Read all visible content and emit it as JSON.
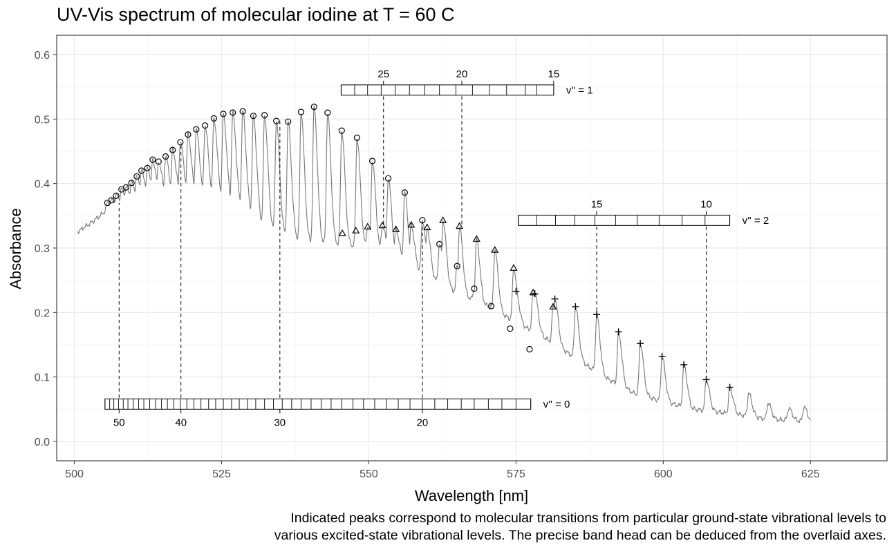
{
  "chart_data": {
    "type": "line",
    "title": "UV-Vis spectrum of molecular iodine at T = 60 C",
    "xlabel": "Wavelength [nm]",
    "ylabel": "Absorbance",
    "caption_lines": [
      "Indicated peaks correspond to molecular transitions from particular ground-state vibrational levels to",
      "various excited-state vibrational levels. The precise band head can be deduced from the overlaid axes."
    ],
    "xlim": [
      497,
      638
    ],
    "ylim": [
      -0.03,
      0.63
    ],
    "x_ticks": [
      500,
      525,
      550,
      575,
      600,
      625
    ],
    "y_ticks": [
      0.0,
      0.1,
      0.2,
      0.3,
      0.4,
      0.5,
      0.6
    ],
    "x_tick_labels": [
      "500",
      "525",
      "550",
      "575",
      "600",
      "625"
    ],
    "y_tick_labels": [
      "0.0",
      "0.1",
      "0.2",
      "0.3",
      "0.4",
      "0.5",
      "0.6"
    ],
    "grid": true,
    "series_color": "#777777",
    "series": [
      {
        "name": "",
        "type": "line",
        "baseline": [
          [
            500.5,
            0.325
          ],
          [
            503,
            0.34
          ],
          [
            505,
            0.355
          ],
          [
            508,
            0.37
          ],
          [
            511,
            0.378
          ],
          [
            515,
            0.38
          ],
          [
            520,
            0.381
          ],
          [
            525,
            0.375
          ],
          [
            529,
            0.36
          ],
          [
            532,
            0.335
          ],
          [
            536,
            0.318
          ],
          [
            540,
            0.308
          ],
          [
            545,
            0.305
          ],
          [
            550,
            0.3
          ],
          [
            555,
            0.285
          ],
          [
            560,
            0.255
          ],
          [
            565,
            0.23
          ],
          [
            570,
            0.21
          ],
          [
            575,
            0.185
          ],
          [
            580,
            0.16
          ],
          [
            585,
            0.13
          ],
          [
            590,
            0.1
          ],
          [
            595,
            0.075
          ],
          [
            600,
            0.062
          ],
          [
            605,
            0.05
          ],
          [
            610,
            0.045
          ],
          [
            614,
            0.04
          ],
          [
            618,
            0.034
          ],
          [
            622,
            0.033
          ],
          [
            625,
            0.03
          ]
        ],
        "tail_peaks": [
          [
            614.5,
            0.075
          ],
          [
            617.8,
            0.06
          ],
          [
            621.3,
            0.052
          ],
          [
            623.9,
            0.054
          ]
        ],
        "start_x": 500.5,
        "end_x": 625
      },
      {
        "name": "",
        "marker": "circle",
        "points": [
          [
            505.6,
            0.37
          ],
          [
            506.3,
            0.374
          ],
          [
            507.1,
            0.381
          ],
          [
            508,
            0.391
          ],
          [
            508.8,
            0.394
          ],
          [
            509.7,
            0.401
          ],
          [
            510.6,
            0.411
          ],
          [
            511.4,
            0.42
          ],
          [
            512.4,
            0.424
          ],
          [
            513.3,
            0.437
          ],
          [
            514.3,
            0.434
          ],
          [
            515.5,
            0.442
          ],
          [
            516.7,
            0.452
          ],
          [
            518,
            0.464
          ],
          [
            519.3,
            0.476
          ],
          [
            520.7,
            0.484
          ],
          [
            522.2,
            0.49
          ],
          [
            523.7,
            0.501
          ],
          [
            525.3,
            0.508
          ],
          [
            526.9,
            0.51
          ],
          [
            528.6,
            0.512
          ],
          [
            530.4,
            0.505
          ],
          [
            532.3,
            0.506
          ],
          [
            534.3,
            0.497
          ],
          [
            536.3,
            0.496
          ],
          [
            538.5,
            0.511
          ],
          [
            540.7,
            0.519
          ],
          [
            543,
            0.51
          ],
          [
            545.4,
            0.482
          ],
          [
            548,
            0.471
          ],
          [
            550.6,
            0.435
          ],
          [
            553.3,
            0.408
          ],
          [
            556.1,
            0.386
          ],
          [
            559.1,
            0.343
          ],
          [
            562,
            0.306
          ],
          [
            565,
            0.272
          ],
          [
            567.9,
            0.237
          ],
          [
            570.8,
            0.21
          ],
          [
            574,
            0.175
          ],
          [
            577.3,
            0.143
          ]
        ]
      },
      {
        "name": "",
        "marker": "triangle",
        "points": [
          [
            545.5,
            0.323
          ],
          [
            547.8,
            0.327
          ],
          [
            549.8,
            0.333
          ],
          [
            552.3,
            0.335
          ],
          [
            554.6,
            0.329
          ],
          [
            557.2,
            0.336
          ],
          [
            559.9,
            0.332
          ],
          [
            562.6,
            0.343
          ],
          [
            565.4,
            0.334
          ],
          [
            568.3,
            0.314
          ],
          [
            571.4,
            0.297
          ],
          [
            574.6,
            0.269
          ],
          [
            577.9,
            0.231
          ],
          [
            581.3,
            0.209
          ]
        ]
      },
      {
        "name": "",
        "marker": "plus",
        "points": [
          [
            575,
            0.233
          ],
          [
            578.2,
            0.229
          ],
          [
            581.6,
            0.221
          ],
          [
            585.1,
            0.209
          ],
          [
            588.7,
            0.197
          ],
          [
            592.4,
            0.17
          ],
          [
            596.1,
            0.152
          ],
          [
            599.8,
            0.132
          ],
          [
            603.5,
            0.119
          ],
          [
            607.3,
            0.096
          ],
          [
            611.3,
            0.084
          ]
        ]
      }
    ],
    "scales": [
      {
        "label": "v'' = 0",
        "y": 0.058,
        "box_height": 0.016,
        "x_from": 505.2,
        "x_to": 577.5,
        "cells": [
          505.2,
          506,
          506.7,
          507.5,
          508.3,
          509.1,
          510,
          510.9,
          511.8,
          512.8,
          513.8,
          514.8,
          515.8,
          516.9,
          518,
          519.1,
          520.3,
          521.5,
          522.8,
          524,
          525.3,
          526.7,
          528,
          529.4,
          530.8,
          532.3,
          533.8,
          535.3,
          536.9,
          538.5,
          540.2,
          541.9,
          543.6,
          545.4,
          547.3,
          549.1,
          551,
          553,
          555,
          557,
          559.1,
          561.2,
          563.4,
          565.7,
          567.9,
          570.3,
          572.6,
          575,
          577.5
        ],
        "ticks": [
          {
            "value": 50,
            "label": "50",
            "x": 507.6
          },
          {
            "value": 40,
            "label": "40",
            "x": 518.1
          },
          {
            "value": 30,
            "label": "30",
            "x": 534.9
          },
          {
            "value": 20,
            "label": "20",
            "x": 559.1
          }
        ],
        "tick_label_position": "below"
      },
      {
        "label": "v'' = 1",
        "y": 0.545,
        "box_height": 0.016,
        "x_from": 545.3,
        "x_to": 581.4,
        "cells": [
          545.3,
          547.6,
          549.8,
          552.1,
          554.5,
          556.9,
          559.5,
          562,
          564.8,
          567.6,
          570.5,
          573.4,
          576.6,
          578.5,
          581.4
        ],
        "ticks": [
          {
            "value": 25,
            "label": "25",
            "x": 552.5
          },
          {
            "value": 20,
            "label": "20",
            "x": 565.8
          },
          {
            "value": 15,
            "label": "15",
            "x": 581.4
          }
        ],
        "tick_label_position": "above"
      },
      {
        "label": "v'' = 2",
        "y": 0.343,
        "box_height": 0.016,
        "x_from": 575.4,
        "x_to": 611.3,
        "cells": [
          575.4,
          578.5,
          581.7,
          585,
          588.4,
          591.9,
          595.6,
          599.3,
          603.2,
          607.1,
          611.3
        ],
        "ticks": [
          {
            "value": 15,
            "label": "15",
            "x": 588.7
          },
          {
            "value": 10,
            "label": "10",
            "x": 607.3
          }
        ],
        "tick_label_position": "above"
      }
    ],
    "guide_lines": [
      {
        "x": 507.6,
        "y_from": 0.058,
        "y_to": 0.37
      },
      {
        "x": 518.1,
        "y_from": 0.058,
        "y_to": 0.464
      },
      {
        "x": 534.9,
        "y_from": 0.058,
        "y_to": 0.497
      },
      {
        "x": 559.1,
        "y_from": 0.058,
        "y_to": 0.343
      },
      {
        "x": 552.5,
        "y_from": 0.545,
        "y_to": 0.335
      },
      {
        "x": 565.8,
        "y_from": 0.545,
        "y_to": 0.334
      },
      {
        "x": 588.7,
        "y_from": 0.343,
        "y_to": 0.197
      },
      {
        "x": 607.3,
        "y_from": 0.343,
        "y_to": 0.096
      }
    ]
  }
}
